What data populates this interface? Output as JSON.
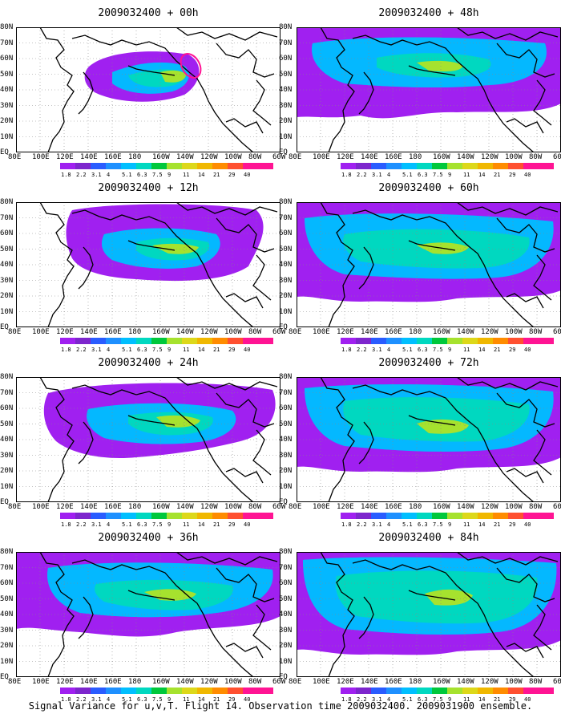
{
  "panels": [
    {
      "title": "2009032400 + 00h"
    },
    {
      "title": "2009032400 + 48h"
    },
    {
      "title": "2009032400 + 12h"
    },
    {
      "title": "2009032400 + 60h"
    },
    {
      "title": "2009032400 + 24h"
    },
    {
      "title": "2009032400 + 72h"
    },
    {
      "title": "2009032400 + 36h"
    },
    {
      "title": "2009032400 + 84h"
    }
  ],
  "lat_labels": [
    "80N",
    "70N",
    "60N",
    "50N",
    "40N",
    "30N",
    "20N",
    "10N",
    "EQ"
  ],
  "lon_labels": [
    "80E",
    "100E",
    "120E",
    "140E",
    "160E",
    "180",
    "160W",
    "140W",
    "120W",
    "100W",
    "80W",
    "60W"
  ],
  "colorbar": {
    "labels": [
      "1.8",
      "2.2",
      "3.1",
      "4",
      "5.1",
      "6.3",
      "7.5",
      "9",
      "11",
      "14",
      "21",
      "29",
      "40"
    ],
    "colors": [
      "#a020f0",
      "#7d26cd",
      "#2a5cff",
      "#1e90ff",
      "#00bfff",
      "#00d8c0",
      "#00c83c",
      "#a6e22e",
      "#ddd81a",
      "#f0b800",
      "#ff8c00",
      "#ff5030",
      "#ff1493"
    ]
  },
  "caption": "Signal Variance for u,v,T. Flight 14. Observation time 2009032400. 2009031900 ensemble.",
  "observation_marker": {
    "panel": 0,
    "color": "#ff1493"
  }
}
